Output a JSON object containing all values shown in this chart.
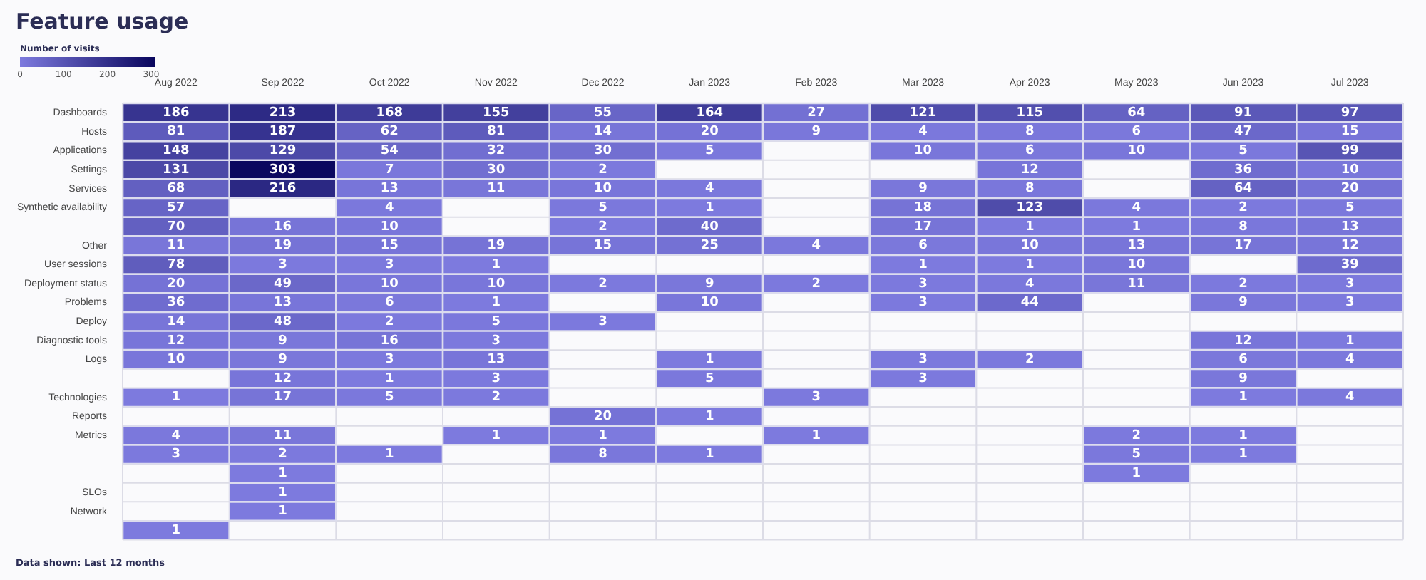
{
  "chart_data": {
    "type": "heatmap",
    "title": "Feature usage",
    "clabel": "Number of visits",
    "clim": [
      0,
      310
    ],
    "cticks": [
      0,
      100,
      200,
      300
    ],
    "categories": [
      "Aug 2022",
      "Sep 2022",
      "Oct 2022",
      "Nov 2022",
      "Dec 2022",
      "Jan 2023",
      "Feb 2023",
      "Mar 2023",
      "Apr 2023",
      "May 2023",
      "Jun 2023",
      "Jul 2023"
    ],
    "y_categories": [
      "Dashboards",
      "Hosts",
      "Applications",
      "Settings",
      "Services",
      "Synthetic availability",
      null,
      "Other",
      "User sessions",
      "Deployment status",
      "Problems",
      "Deploy",
      "Diagnostic tools",
      "Logs",
      null,
      "Technologies",
      "Reports",
      "Metrics",
      null,
      null,
      "SLOs",
      "Network",
      null
    ],
    "cells": [
      [
        186,
        213,
        168,
        155,
        55,
        164,
        27,
        121,
        115,
        64,
        91,
        97
      ],
      [
        81,
        187,
        62,
        81,
        14,
        20,
        9,
        4,
        8,
        6,
        47,
        15
      ],
      [
        148,
        129,
        54,
        32,
        30,
        5,
        null,
        10,
        6,
        10,
        5,
        99
      ],
      [
        131,
        303,
        7,
        30,
        2,
        null,
        null,
        null,
        12,
        null,
        36,
        10
      ],
      [
        68,
        216,
        13,
        11,
        10,
        4,
        null,
        9,
        8,
        null,
        64,
        20
      ],
      [
        57,
        null,
        4,
        null,
        5,
        1,
        null,
        18,
        123,
        4,
        2,
        5
      ],
      [
        70,
        16,
        10,
        null,
        2,
        40,
        null,
        17,
        1,
        1,
        8,
        13
      ],
      [
        11,
        19,
        15,
        19,
        15,
        25,
        4,
        6,
        10,
        13,
        17,
        12
      ],
      [
        78,
        3,
        3,
        1,
        null,
        null,
        null,
        1,
        1,
        10,
        null,
        39
      ],
      [
        20,
        49,
        10,
        10,
        2,
        9,
        2,
        3,
        4,
        11,
        2,
        3
      ],
      [
        36,
        13,
        6,
        1,
        null,
        10,
        null,
        3,
        44,
        null,
        9,
        3
      ],
      [
        14,
        48,
        2,
        5,
        3,
        null,
        null,
        null,
        null,
        null,
        null,
        null
      ],
      [
        12,
        9,
        16,
        3,
        null,
        null,
        null,
        null,
        null,
        null,
        12,
        1
      ],
      [
        10,
        9,
        3,
        13,
        null,
        1,
        null,
        3,
        2,
        null,
        6,
        4
      ],
      [
        null,
        12,
        1,
        3,
        null,
        5,
        null,
        3,
        null,
        null,
        9,
        null
      ],
      [
        1,
        17,
        5,
        2,
        null,
        null,
        3,
        null,
        null,
        null,
        1,
        4
      ],
      [
        null,
        null,
        null,
        null,
        20,
        1,
        null,
        null,
        null,
        null,
        null,
        null
      ],
      [
        4,
        11,
        null,
        1,
        1,
        null,
        1,
        null,
        null,
        2,
        1,
        null
      ],
      [
        3,
        2,
        1,
        null,
        8,
        1,
        null,
        null,
        null,
        5,
        1,
        null
      ],
      [
        null,
        1,
        null,
        null,
        null,
        null,
        null,
        null,
        null,
        1,
        null,
        null
      ],
      [
        null,
        1,
        null,
        null,
        null,
        null,
        null,
        null,
        null,
        null,
        null,
        null
      ],
      [
        null,
        1,
        null,
        null,
        null,
        null,
        null,
        null,
        null,
        null,
        null,
        null
      ],
      [
        1,
        null,
        null,
        null,
        null,
        null,
        null,
        null,
        null,
        null,
        null,
        null
      ]
    ],
    "data_labels": true,
    "annotations": [
      "Data shown: Last 12 months"
    ]
  }
}
